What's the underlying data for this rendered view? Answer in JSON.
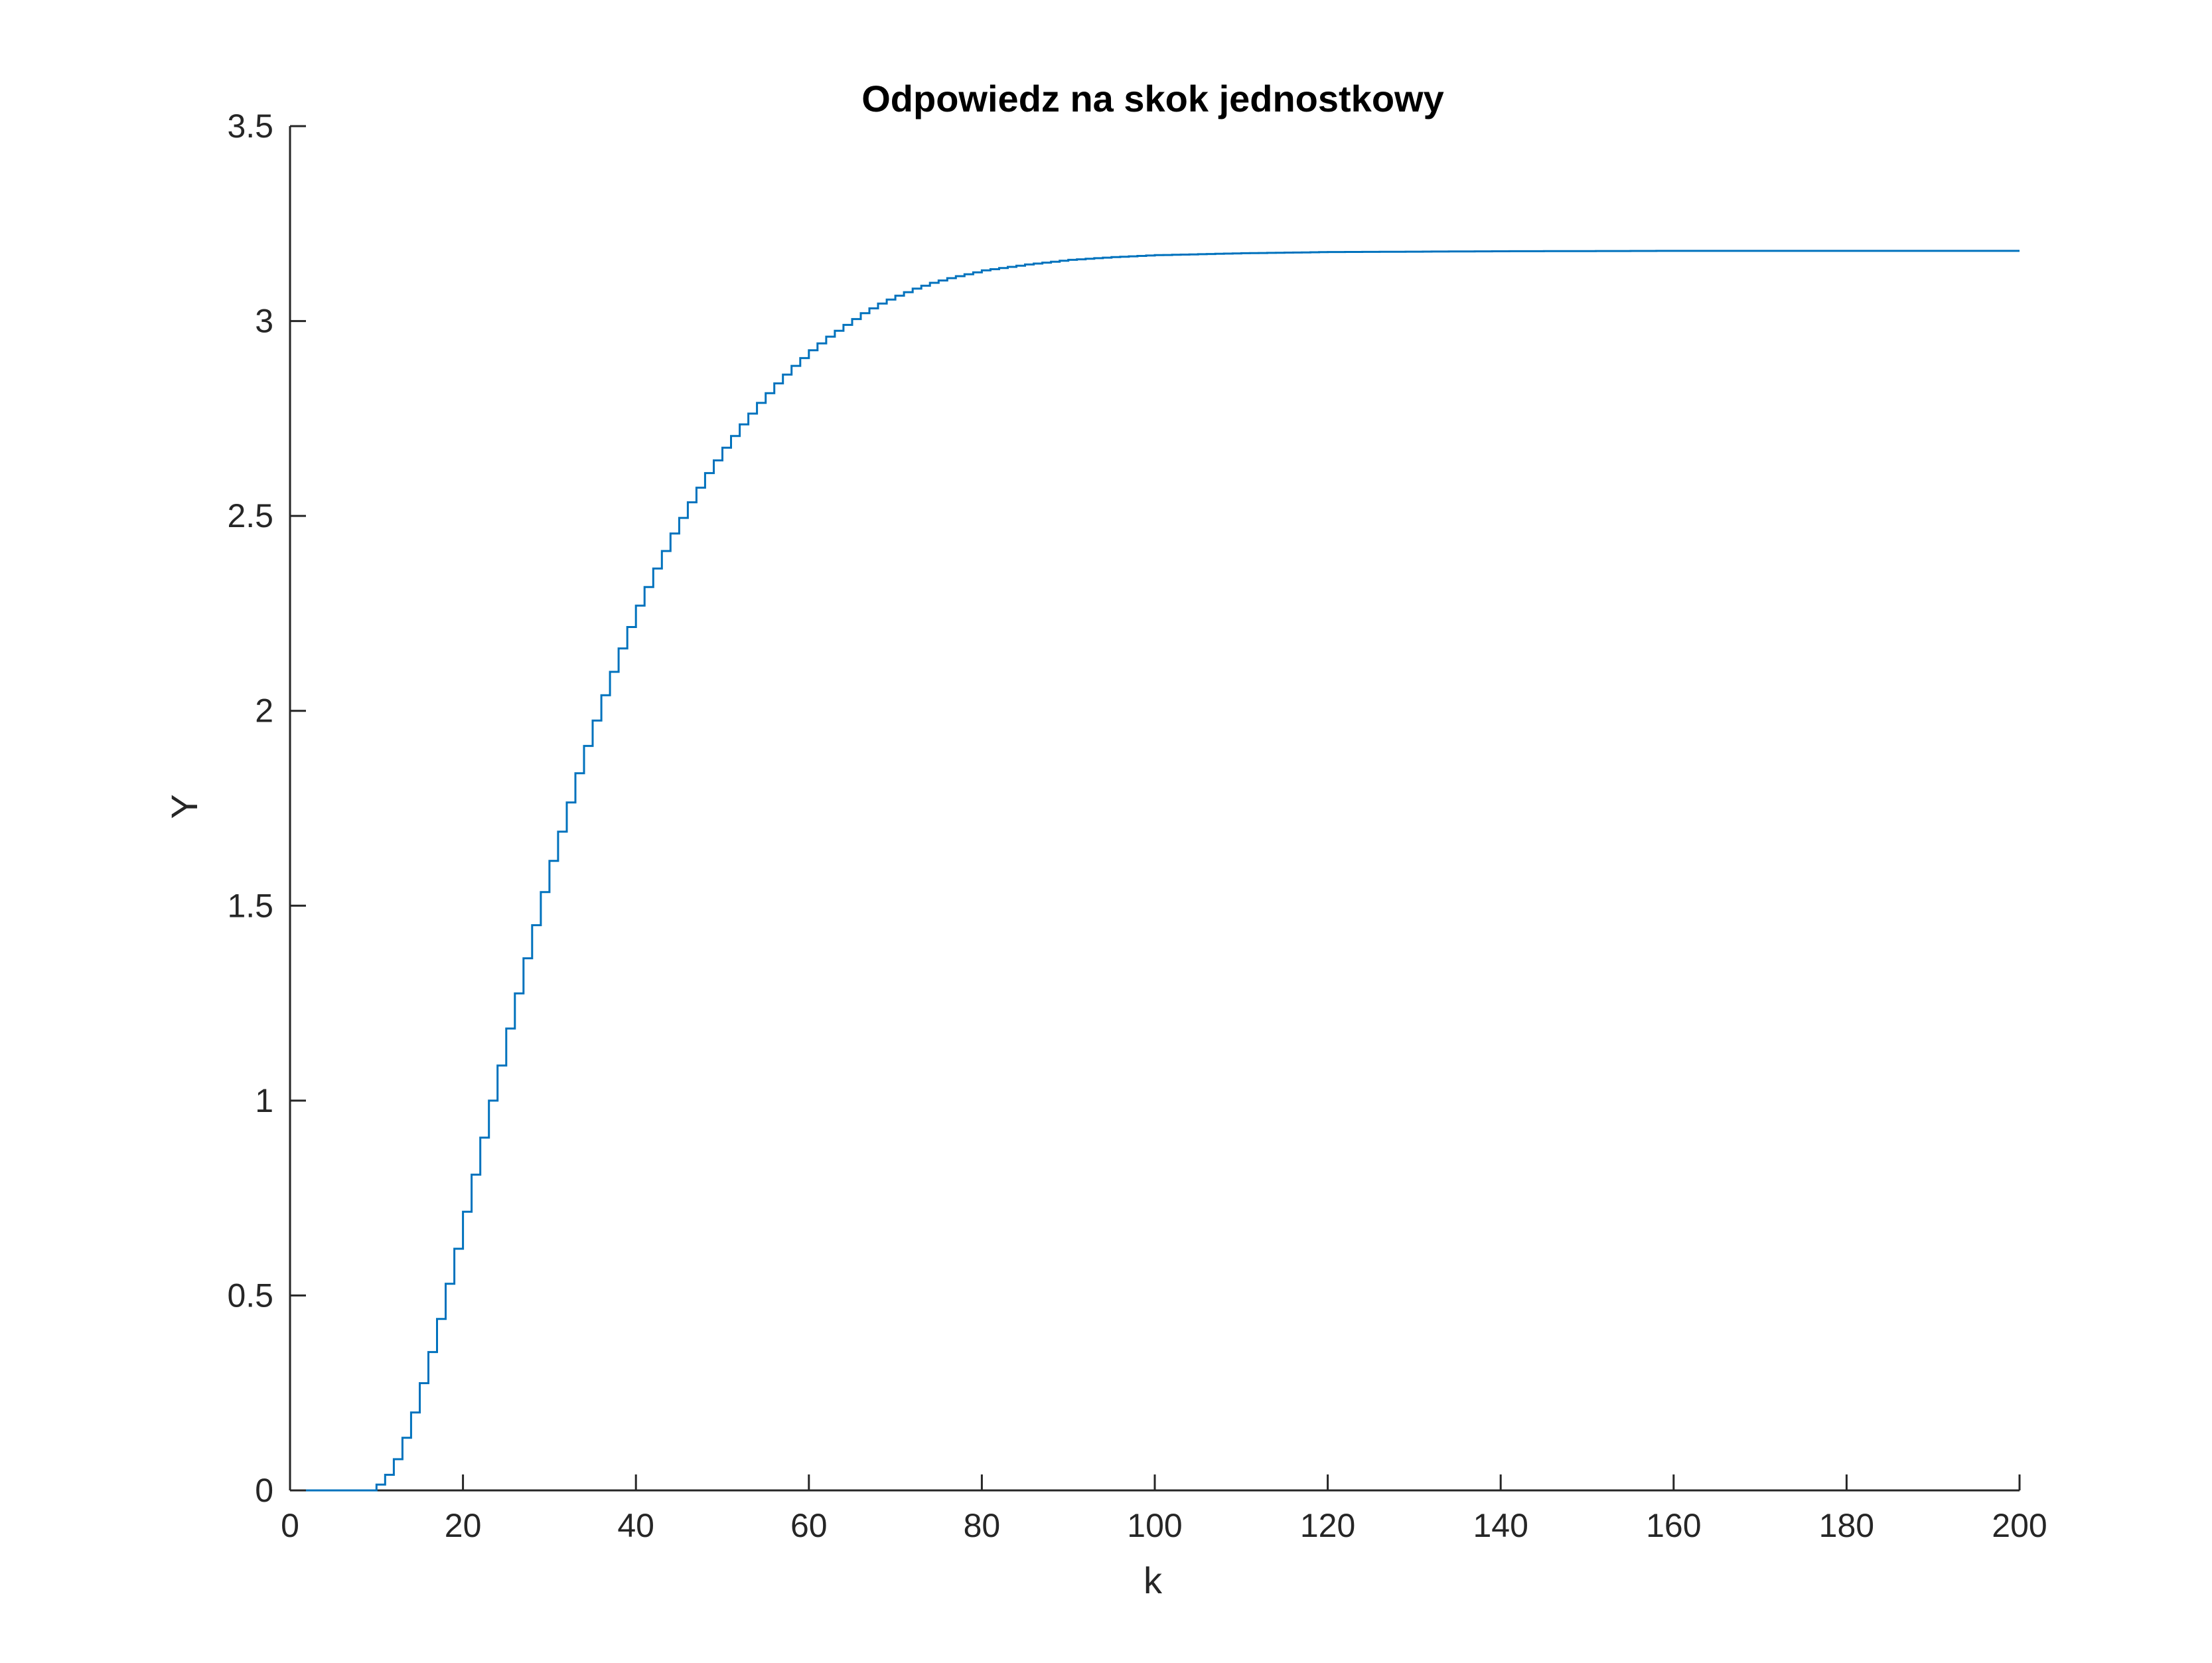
{
  "chart_data": {
    "type": "line",
    "style": "stairs",
    "title": "Odpowiedz na skok jednostkowy",
    "xlabel": "k",
    "ylabel": "Y",
    "xlim": [
      0,
      200
    ],
    "ylim": [
      0,
      3.5
    ],
    "xticks": [
      "0",
      "20",
      "40",
      "60",
      "80",
      "100",
      "120",
      "140",
      "160",
      "180",
      "200"
    ],
    "yticks": [
      "0",
      "0.5",
      "1",
      "1.5",
      "2",
      "2.5",
      "3",
      "3.5"
    ],
    "grid": false,
    "legend": "none",
    "series_color": "#0072BD",
    "series": [
      {
        "x": [
          0,
          10,
          11,
          12,
          13,
          14,
          15,
          16,
          17,
          18,
          19,
          20,
          21,
          22,
          23,
          24,
          25,
          26,
          27,
          28,
          29,
          30,
          31,
          32,
          33,
          34,
          35,
          36,
          37,
          38,
          39,
          40,
          42,
          44,
          46,
          48,
          50,
          52,
          54,
          56,
          58,
          60,
          62,
          64,
          66,
          68,
          70,
          72,
          74,
          76,
          78,
          80,
          85,
          90,
          95,
          100,
          110,
          120,
          140,
          160,
          180,
          200
        ],
        "y": [
          0,
          0.015,
          0.04,
          0.08,
          0.135,
          0.2,
          0.275,
          0.355,
          0.44,
          0.53,
          0.62,
          0.715,
          0.81,
          0.905,
          1.0,
          1.09,
          1.185,
          1.275,
          1.365,
          1.45,
          1.535,
          1.615,
          1.69,
          1.765,
          1.84,
          1.91,
          1.975,
          2.04,
          2.1,
          2.16,
          2.215,
          2.27,
          2.365,
          2.455,
          2.535,
          2.61,
          2.675,
          2.735,
          2.79,
          2.84,
          2.885,
          2.925,
          2.96,
          2.99,
          3.02,
          3.045,
          3.065,
          3.083,
          3.098,
          3.11,
          3.12,
          3.13,
          3.145,
          3.157,
          3.164,
          3.169,
          3.174,
          3.177,
          3.179,
          3.18,
          3.18,
          3.18
        ]
      }
    ]
  }
}
